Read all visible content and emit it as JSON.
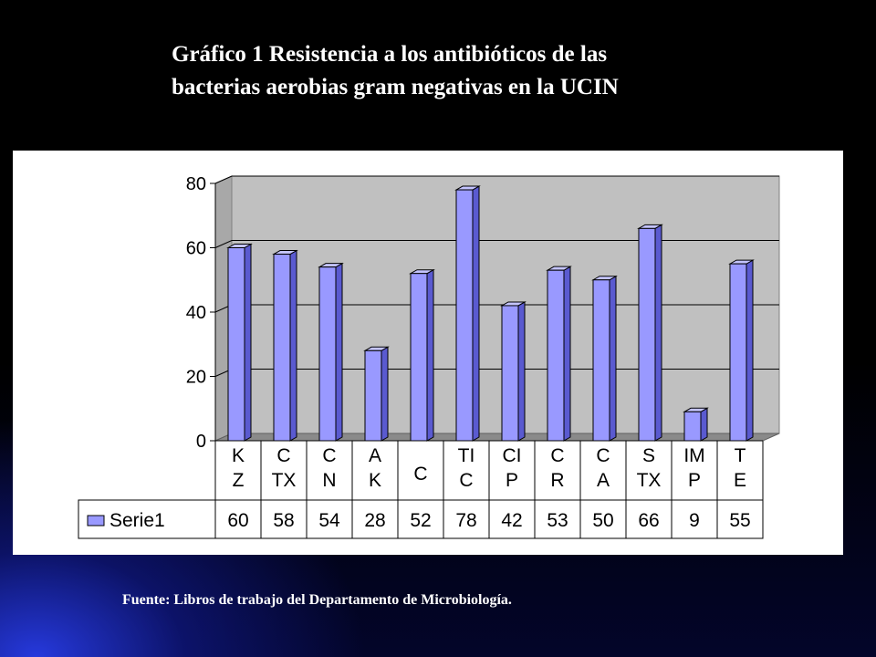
{
  "title": {
    "line1": "Gráfico 1 Resistencia a los antibióticos  de las",
    "line2": "bacterias aerobias gram negativas en la UCIN"
  },
  "source": "Fuente: Libros de trabajo del Departamento de Microbiología.",
  "colors": {
    "bar_front": "#9999ff",
    "bar_side": "#5a5ad0",
    "bar_top": "#c4c4ff",
    "plot_back": "#c0c0c0",
    "plot_floor": "#8a8a8a"
  },
  "chart_data": {
    "type": "bar",
    "title": "Gráfico 1 Resistencia a los antibióticos  de las bacterias aerobias gram negativas en la UCIN",
    "categories": [
      [
        "K",
        "Z"
      ],
      [
        "C",
        "TX"
      ],
      [
        "C",
        "N"
      ],
      [
        "A",
        "K"
      ],
      [
        "C"
      ],
      [
        "TI",
        "C"
      ],
      [
        "CI",
        "P"
      ],
      [
        "C",
        "R"
      ],
      [
        "C",
        "A"
      ],
      [
        "S",
        "TX"
      ],
      [
        "IM",
        "P"
      ],
      [
        "T",
        "E"
      ]
    ],
    "series": [
      {
        "name": "Serie1",
        "values": [
          60,
          58,
          54,
          28,
          52,
          78,
          42,
          53,
          50,
          66,
          9,
          55
        ]
      }
    ],
    "ylim": [
      0,
      80
    ],
    "yticks": [
      0,
      20,
      40,
      60,
      80
    ],
    "grid": true,
    "legend": "data-table"
  }
}
